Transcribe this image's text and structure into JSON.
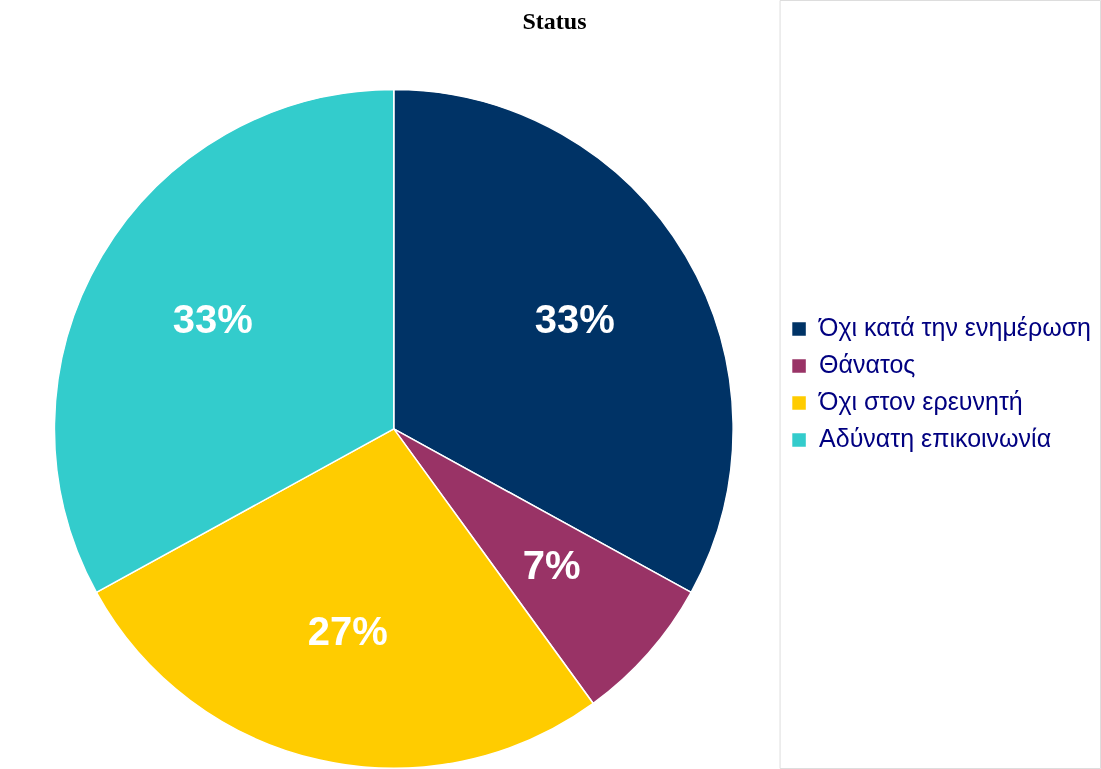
{
  "chart_data": {
    "type": "pie",
    "title": "Status",
    "categories": [
      "Όχι κατά την ενημέρωση",
      "Θάνατος",
      "Όχι στον ερευνητή",
      "Αδύνατη επικοινωνία"
    ],
    "values": [
      33,
      7,
      27,
      33
    ],
    "colors": [
      "#003366",
      "#993366",
      "#ffcc00",
      "#33cccc"
    ],
    "value_labels": [
      "33%",
      "7%",
      "27%",
      "33%"
    ],
    "legend": "right"
  }
}
